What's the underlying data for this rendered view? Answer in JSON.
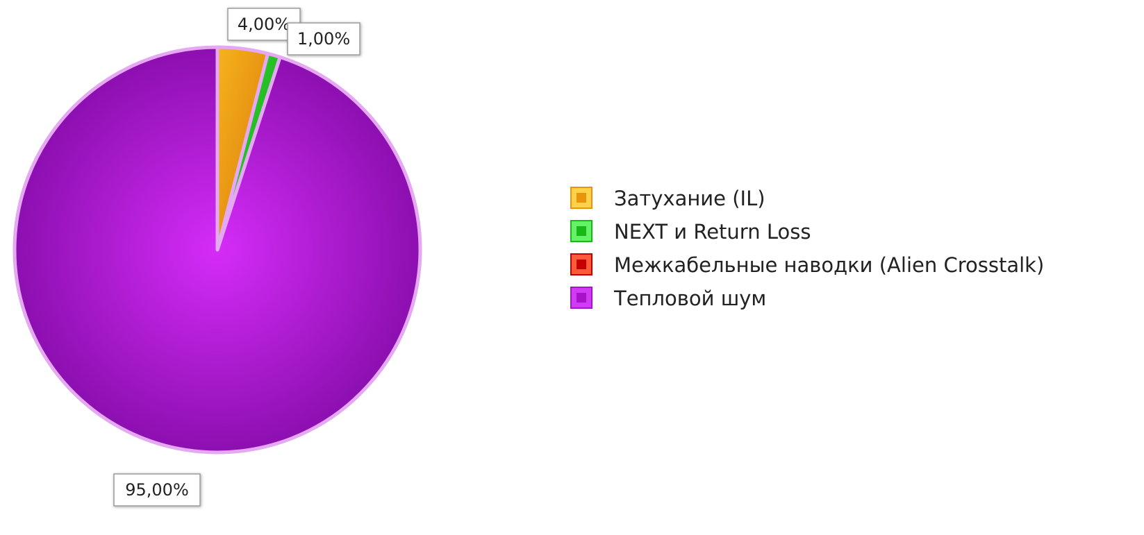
{
  "chart_data": {
    "type": "pie",
    "title": "",
    "series": [
      {
        "name": "Затухание (IL)",
        "value": 4.0,
        "label": "4,00%",
        "color": "#E8940C",
        "color_light": "#FFD24A"
      },
      {
        "name": "NEXT и Return Loss",
        "value": 1.0,
        "label": "1,00%",
        "color": "#19B819",
        "color_light": "#66F266"
      },
      {
        "name": "Межкабельные наводки (Alien Crosstalk)",
        "value": 0.0,
        "label": "",
        "color": "#C40000",
        "color_light": "#FF5A3A"
      },
      {
        "name": "Тепловой шум",
        "value": 95.0,
        "label": "95,00%",
        "color": "#A514C8",
        "color_light": "#D23BF5"
      }
    ],
    "start_angle": "12 o'clock",
    "direction": "clockwise",
    "slice_border_color": "#E5A8F2",
    "legend_position": "right"
  }
}
